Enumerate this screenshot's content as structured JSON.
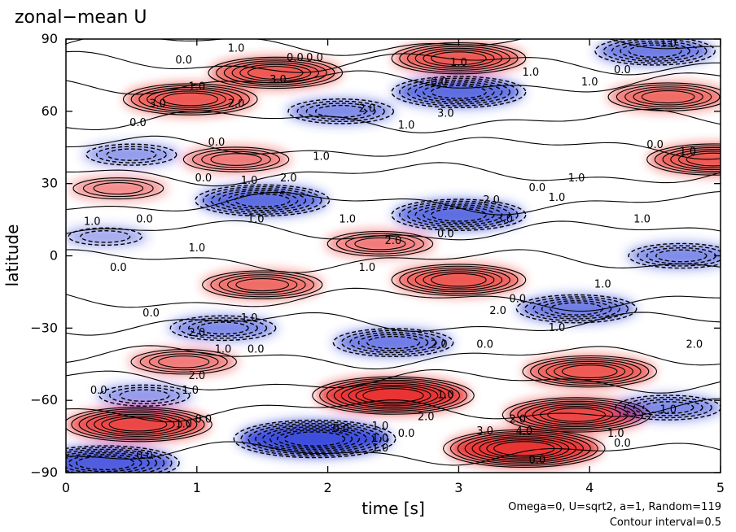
{
  "chart_data": {
    "type": "heatmap",
    "title": "zonal−mean U",
    "xlabel": "time [s]",
    "ylabel": "latitude",
    "xlim": [
      0,
      5
    ],
    "ylim": [
      -90,
      90
    ],
    "x_ticks": [
      "0",
      "1",
      "2",
      "3",
      "4",
      "5"
    ],
    "y_ticks": [
      "−90",
      "−60",
      "−30",
      "0",
      "30",
      "60",
      "90"
    ],
    "x_tick_values": [
      0,
      1,
      2,
      3,
      4,
      5
    ],
    "y_tick_values": [
      -90,
      -60,
      -30,
      0,
      30,
      60,
      90
    ],
    "contour_interval": 0.5,
    "color_positive": "#e8201e",
    "color_negative": "#2a3cd8",
    "annotations": [
      "Omega=0, U=sqrt2, a=1, Random=119",
      "Contour interval=0.5"
    ],
    "features": [
      {
        "t": 0.55,
        "lat": -70,
        "u": 3.5
      },
      {
        "t": 2.5,
        "lat": -58,
        "u": 4.0
      },
      {
        "t": 3.5,
        "lat": -80,
        "u": 4.0
      },
      {
        "t": 3.9,
        "lat": -66,
        "u": 3.5
      },
      {
        "t": 4.0,
        "lat": -48,
        "u": 3.0
      },
      {
        "t": 0.9,
        "lat": -44,
        "u": 2.0
      },
      {
        "t": 3.0,
        "lat": -10,
        "u": 3.0
      },
      {
        "t": 1.5,
        "lat": -12,
        "u": 2.5
      },
      {
        "t": 2.4,
        "lat": 5,
        "u": 2.0
      },
      {
        "t": 1.6,
        "lat": 76,
        "u": 3.0
      },
      {
        "t": 3.0,
        "lat": 82,
        "u": 3.0
      },
      {
        "t": 0.95,
        "lat": 65,
        "u": 3.0
      },
      {
        "t": 4.6,
        "lat": 66,
        "u": 2.5
      },
      {
        "t": 4.95,
        "lat": 40,
        "u": 3.0
      },
      {
        "t": 1.3,
        "lat": 40,
        "u": 2.0
      },
      {
        "t": 0.4,
        "lat": 28,
        "u": 1.5
      },
      {
        "t": 1.5,
        "lat": 23,
        "u": -3.0
      },
      {
        "t": 3.0,
        "lat": 17,
        "u": -3.0
      },
      {
        "t": 3.0,
        "lat": 68,
        "u": -3.0
      },
      {
        "t": 4.5,
        "lat": 85,
        "u": -2.5
      },
      {
        "t": 1.9,
        "lat": -76,
        "u": -4.0
      },
      {
        "t": 0.3,
        "lat": -86,
        "u": -3.5
      },
      {
        "t": 2.5,
        "lat": -36,
        "u": -2.5
      },
      {
        "t": 1.2,
        "lat": -30,
        "u": -2.0
      },
      {
        "t": 3.9,
        "lat": -22,
        "u": -2.5
      },
      {
        "t": 0.5,
        "lat": 42,
        "u": -1.5
      },
      {
        "t": 0.6,
        "lat": -58,
        "u": -1.5
      },
      {
        "t": 4.6,
        "lat": -63,
        "u": -2.0
      },
      {
        "t": 2.1,
        "lat": 60,
        "u": -2.0
      },
      {
        "t": 4.7,
        "lat": 0,
        "u": -2.0
      },
      {
        "t": 0.3,
        "lat": 8,
        "u": -1.0
      }
    ],
    "contour_labels": [
      {
        "text": "1.0",
        "t": 1.3,
        "lat": 86
      },
      {
        "text": "0.0",
        "t": 0.9,
        "lat": 81
      },
      {
        "text": "0.0",
        "t": 1.75,
        "lat": 82
      },
      {
        "text": "0.0",
        "t": 1.9,
        "lat": 82
      },
      {
        "text": "1.0",
        "t": 3.0,
        "lat": 80
      },
      {
        "text": "1.0",
        "t": 3.55,
        "lat": 76
      },
      {
        "text": "1.0",
        "t": 4.6,
        "lat": 88
      },
      {
        "text": "1.0",
        "t": 4.0,
        "lat": 72
      },
      {
        "text": "0.0",
        "t": 4.25,
        "lat": 77
      },
      {
        "text": "0.0",
        "t": 2.85,
        "lat": 72
      },
      {
        "text": "3.0",
        "t": 1.62,
        "lat": 73
      },
      {
        "text": "1.0",
        "t": 1.0,
        "lat": 70
      },
      {
        "text": "3.0",
        "t": 0.7,
        "lat": 63
      },
      {
        "text": "2.0",
        "t": 1.3,
        "lat": 63
      },
      {
        "text": "0.0",
        "t": 0.55,
        "lat": 55
      },
      {
        "text": "1.0",
        "t": 2.6,
        "lat": 54
      },
      {
        "text": "2.0",
        "t": 2.3,
        "lat": 61
      },
      {
        "text": "3.0",
        "t": 2.9,
        "lat": 59
      },
      {
        "text": "0.0",
        "t": 4.5,
        "lat": 46
      },
      {
        "text": "1.0",
        "t": 4.75,
        "lat": 43
      },
      {
        "text": "0.0",
        "t": 1.15,
        "lat": 47
      },
      {
        "text": "1.0",
        "t": 1.95,
        "lat": 41
      },
      {
        "text": "0.0",
        "t": 1.05,
        "lat": 32
      },
      {
        "text": "1.0",
        "t": 1.4,
        "lat": 31
      },
      {
        "text": "2.0",
        "t": 1.7,
        "lat": 32
      },
      {
        "text": "1.0",
        "t": 3.9,
        "lat": 32
      },
      {
        "text": "0.0",
        "t": 3.6,
        "lat": 28
      },
      {
        "text": "1.0",
        "t": 3.75,
        "lat": 24
      },
      {
        "text": "2.0",
        "t": 3.25,
        "lat": 23
      },
      {
        "text": "3.0",
        "t": 3.35,
        "lat": 15
      },
      {
        "text": "1.0",
        "t": 1.45,
        "lat": 15
      },
      {
        "text": "1.0",
        "t": 2.15,
        "lat": 15
      },
      {
        "text": "1.0",
        "t": 0.2,
        "lat": 14
      },
      {
        "text": "0.0",
        "t": 0.6,
        "lat": 15
      },
      {
        "text": "0.0",
        "t": 2.9,
        "lat": 9
      },
      {
        "text": "2.0",
        "t": 2.5,
        "lat": 6
      },
      {
        "text": "1.0",
        "t": 4.4,
        "lat": 15
      },
      {
        "text": "1.0",
        "t": 1.0,
        "lat": 3
      },
      {
        "text": "1.0",
        "t": 2.3,
        "lat": -5
      },
      {
        "text": "0.0",
        "t": 0.4,
        "lat": -5
      },
      {
        "text": "0.0",
        "t": 3.45,
        "lat": -18
      },
      {
        "text": "2.0",
        "t": 3.3,
        "lat": -23
      },
      {
        "text": "1.0",
        "t": 4.1,
        "lat": -12
      },
      {
        "text": "0.0",
        "t": 0.65,
        "lat": -24
      },
      {
        "text": "1.0",
        "t": 1.4,
        "lat": -26
      },
      {
        "text": "1.0",
        "t": 3.75,
        "lat": -30
      },
      {
        "text": "2.0",
        "t": 1.0,
        "lat": -32
      },
      {
        "text": "1.0",
        "t": 1.2,
        "lat": -39
      },
      {
        "text": "0.0",
        "t": 1.45,
        "lat": -39
      },
      {
        "text": "2.0",
        "t": 2.85,
        "lat": -37
      },
      {
        "text": "0.0",
        "t": 3.2,
        "lat": -37
      },
      {
        "text": "2.0",
        "t": 4.8,
        "lat": -37
      },
      {
        "text": "2.0",
        "t": 1.0,
        "lat": -50
      },
      {
        "text": "0.0",
        "t": 0.25,
        "lat": -56
      },
      {
        "text": "1.0",
        "t": 0.95,
        "lat": -56
      },
      {
        "text": "1.0",
        "t": 2.9,
        "lat": -58
      },
      {
        "text": "2.0",
        "t": 2.75,
        "lat": -67
      },
      {
        "text": "2.0",
        "t": 3.45,
        "lat": -68
      },
      {
        "text": "1.0",
        "t": 4.6,
        "lat": -64
      },
      {
        "text": "0.0",
        "t": 1.05,
        "lat": -68
      },
      {
        "text": "0.0",
        "t": 2.1,
        "lat": -72
      },
      {
        "text": "1.0",
        "t": 2.4,
        "lat": -71
      },
      {
        "text": "3.0",
        "t": 3.2,
        "lat": -73
      },
      {
        "text": "4.0",
        "t": 3.5,
        "lat": -73
      },
      {
        "text": "1.0",
        "t": 2.4,
        "lat": -76
      },
      {
        "text": "0.0",
        "t": 2.6,
        "lat": -74
      },
      {
        "text": "1.0",
        "t": 2.4,
        "lat": -80
      },
      {
        "text": "1.0",
        "t": 4.2,
        "lat": -74
      },
      {
        "text": "0.0",
        "t": 4.25,
        "lat": -78
      },
      {
        "text": "0.0",
        "t": 3.6,
        "lat": -85
      },
      {
        "text": "1.0",
        "t": 0.9,
        "lat": -70
      },
      {
        "text": "0.0",
        "t": 0.6,
        "lat": -83
      }
    ]
  }
}
